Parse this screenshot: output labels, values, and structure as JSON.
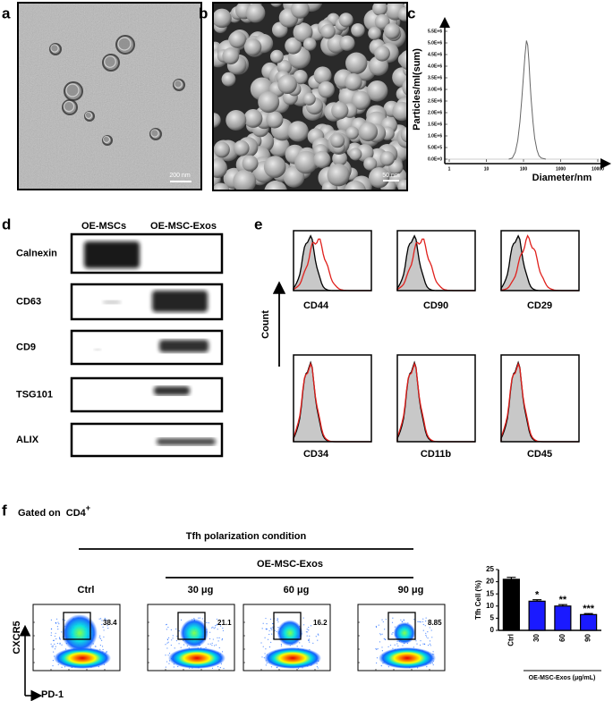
{
  "panel_labels": [
    "a",
    "b",
    "c",
    "d",
    "e",
    "f"
  ],
  "images": [
    {
      "scale_bar": "200 nm"
    },
    {
      "scale_bar": "50 nm"
    }
  ],
  "western_blot": {
    "columns": [
      "OE-MSCs",
      "OE-MSC-Exos"
    ],
    "rows": [
      "Calnexin",
      "CD63",
      "CD9",
      "TSG101",
      "ALIX"
    ]
  },
  "flow_histograms": {
    "y_label": "Count",
    "markers": [
      "CD44",
      "CD90",
      "CD29",
      "CD34",
      "CD11b",
      "CD45"
    ]
  },
  "flow_plots": {
    "gating": "Gated on  CD4",
    "gating_sup": "+",
    "condition": "Tfh polarization condition",
    "treatment": "OE-MSC-Exos",
    "x_label": "PD-1",
    "y_label": "CXCR5",
    "samples": [
      "Ctrl",
      "30 μg",
      "60 μg",
      "90 μg"
    ],
    "gate_values": [
      38.4,
      21.1,
      16.2,
      8.85
    ]
  },
  "chart_data": [
    {
      "type": "line",
      "y_label": "Particles/ml(sum)",
      "x_label": "Diameter/nm",
      "color": "#666666",
      "x": [
        40,
        50,
        60,
        70,
        80,
        90,
        100,
        110,
        120,
        130,
        140,
        150,
        160,
        180,
        200,
        230,
        260,
        300,
        400
      ],
      "values": [
        0,
        50000,
        300000,
        800000,
        1600000,
        2600000,
        3600000,
        4500000,
        5100000,
        4900000,
        4200000,
        3300000,
        2600000,
        1600000,
        900000,
        400000,
        150000,
        50000,
        0
      ],
      "x_scale": "log",
      "xlim": [
        1,
        10000
      ],
      "xticks": [
        1,
        10,
        100,
        1000,
        10000
      ],
      "ylim": [
        0,
        5500000
      ],
      "yticks": [
        {
          "value": 0,
          "label": "0.0E+0"
        },
        {
          "value": 500000,
          "label": "5.0E+5"
        },
        {
          "value": 1000000,
          "label": "1.0E+6"
        },
        {
          "value": 1500000,
          "label": "1.5E+6"
        },
        {
          "value": 2000000,
          "label": "2.0E+6"
        },
        {
          "value": 2500000,
          "label": "2.5E+6"
        },
        {
          "value": 3000000,
          "label": "3.0E+6"
        },
        {
          "value": 3500000,
          "label": "3.5E+6"
        },
        {
          "value": 4000000,
          "label": "4.0E+6"
        },
        {
          "value": 4500000,
          "label": "4.5E+6"
        },
        {
          "value": 5000000,
          "label": "5.0E+6"
        },
        {
          "value": 5500000,
          "label": "5.5E+6"
        }
      ]
    },
    {
      "type": "bar",
      "y_label": "Tfh Cell (%)",
      "categories": [
        "Ctrl",
        "30",
        "60",
        "90"
      ],
      "values": [
        21,
        12,
        10,
        6.5
      ],
      "errors": [
        0.8,
        0.6,
        0.6,
        0.4
      ],
      "colors": [
        "#000000",
        "#1a1aff",
        "#1a1aff",
        "#1a1aff"
      ],
      "annotations": [
        null,
        "*",
        "**",
        "***"
      ],
      "group_label": "OE-MSC-Exos (μg/mL)",
      "ylim": [
        0,
        25
      ],
      "yticks": [
        0,
        5,
        10,
        15,
        20,
        25
      ]
    }
  ]
}
